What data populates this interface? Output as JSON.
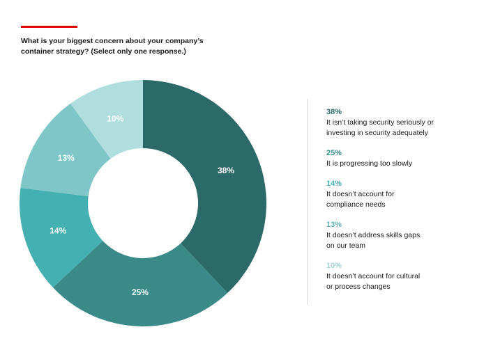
{
  "header": {
    "accent_color": "#e00000",
    "question_lines": [
      "What is your biggest concern about your company’s",
      "container strategy? (Select only one response.)"
    ]
  },
  "chart_data": {
    "type": "pie",
    "donut": true,
    "title": "What is your biggest concern about your company’s container strategy? (Select only one response.)",
    "unit": "%",
    "slices": [
      {
        "value": 38,
        "label": "38%",
        "description_lines": [
          "It isn’t taking security seriously or",
          "investing in security adequately"
        ],
        "color": "#2c6a69",
        "label_color": "#ffffff",
        "legend_pct_color": "#2c6a69"
      },
      {
        "value": 25,
        "label": "25%",
        "description_lines": [
          "It is progressing too slowly"
        ],
        "color": "#3a8a8a",
        "label_color": "#ffffff",
        "legend_pct_color": "#3a8a8a"
      },
      {
        "value": 14,
        "label": "14%",
        "description_lines": [
          "It doesn’t account for",
          "compliance needs"
        ],
        "color": "#45b0b1",
        "label_color": "#ffffff",
        "legend_pct_color": "#45b0b1"
      },
      {
        "value": 13,
        "label": "13%",
        "description_lines": [
          "It doesn’t address skills gaps",
          "on our team"
        ],
        "color": "#7ec6c7",
        "label_color": "#ffffff",
        "legend_pct_color": "#5fb5b6"
      },
      {
        "value": 10,
        "label": "10%",
        "description_lines": [
          "It doesn’t account for cultural",
          "or process changes"
        ],
        "color": "#b0dedf",
        "label_color": "#ffffff",
        "legend_pct_color": "#a3d3d4"
      }
    ]
  }
}
